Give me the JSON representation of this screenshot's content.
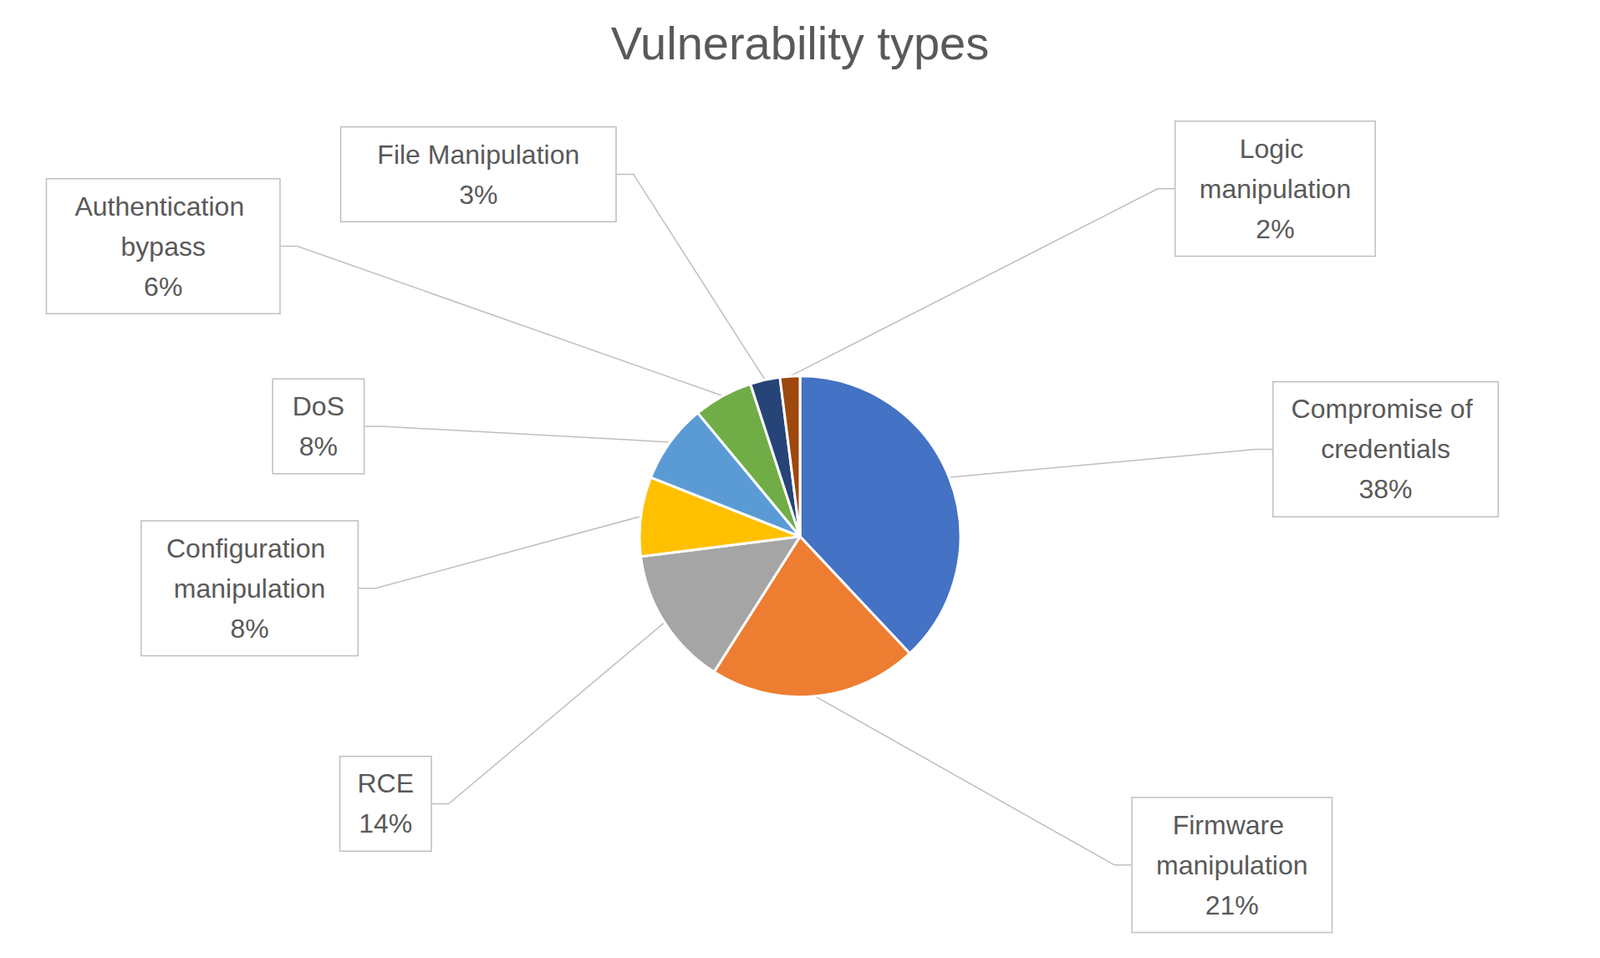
{
  "chart_data": {
    "type": "pie",
    "title": "Vulnerability types",
    "categories": [
      "Compromise of credentials",
      "Firmware manipulation",
      "RCE",
      "Configuration manipulation",
      "DoS",
      "Authentication bypass",
      "File Manipulation",
      "Logic manipulation"
    ],
    "values": [
      38,
      21,
      14,
      8,
      8,
      6,
      3,
      2
    ],
    "value_labels": [
      "38%",
      "21%",
      "14%",
      "8%",
      "8%",
      "6%",
      "3%",
      "2%"
    ],
    "colors": [
      "#4472c4",
      "#ed7d31",
      "#a5a5a5",
      "#ffc000",
      "#5b9bd5",
      "#70ad47",
      "#264478",
      "#9e480e"
    ],
    "data_labels": true
  }
}
